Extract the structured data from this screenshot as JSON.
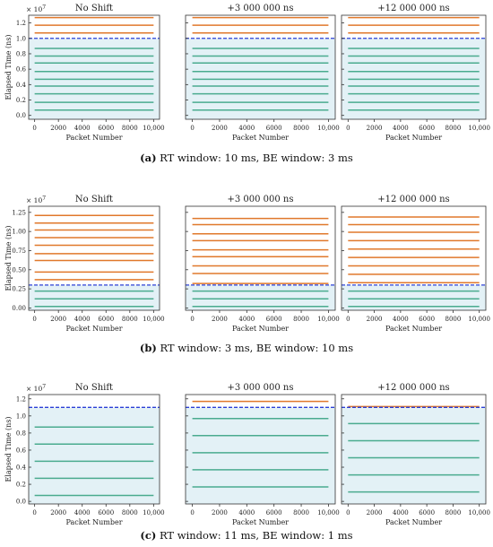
{
  "shared": {
    "ylabel": "Elapsed Time (ns)",
    "xlabel": "Packet Number",
    "exponent": "× 10",
    "exponent_power": "7",
    "x_ticks": [
      "0",
      "2000",
      "4000",
      "6000",
      "8000",
      "10,000"
    ],
    "x_tick_values": [
      0,
      2000,
      4000,
      6000,
      8000,
      10000
    ],
    "xlim": [
      -500,
      10500
    ],
    "colors": {
      "rt_line": "#4aab8f",
      "be_line": "#e0782b",
      "threshold": "#2b3fd6",
      "rt_fill": "#e3f1f6",
      "frame": "#333333"
    }
  },
  "rows": [
    {
      "caption_label": "(a)",
      "caption_text": "RT window: 10 ms, BE window: 3 ms",
      "y_ticks": [
        "0.0",
        "0.2",
        "0.4",
        "0.6",
        "0.8",
        "1.0",
        "1.2"
      ],
      "y_tick_values": [
        0.0,
        0.2,
        0.4,
        0.6,
        0.8,
        1.0,
        1.2
      ]
    },
    {
      "caption_label": "(b)",
      "caption_text": "RT window: 3 ms, BE window: 10 ms",
      "y_ticks": [
        "0.00",
        "0.25",
        "0.50",
        "0.75",
        "1.00",
        "1.25"
      ],
      "y_tick_values": [
        0.0,
        0.25,
        0.5,
        0.75,
        1.0,
        1.25
      ]
    },
    {
      "caption_label": "(c)",
      "caption_text": "RT window: 11 ms, BE window: 1 ms",
      "y_ticks": [
        "0.0",
        "0.2",
        "0.4",
        "0.6",
        "0.8",
        "1.0",
        "1.2"
      ],
      "y_tick_values": [
        0.0,
        0.2,
        0.4,
        0.6,
        0.8,
        1.0,
        1.2
      ]
    }
  ],
  "chart_data": [
    {
      "type": "line",
      "row": 0,
      "title": "No Shift",
      "xlabel": "Packet Number",
      "ylabel": "Elapsed Time (ns)",
      "ylim": [
        -0.05,
        1.3
      ],
      "threshold": 1.0,
      "rt_fill_max": 1.0,
      "series": [
        {
          "group": "rt",
          "values": [
            0.07,
            0.17,
            0.28,
            0.38,
            0.47,
            0.57,
            0.68,
            0.77,
            0.87
          ]
        },
        {
          "group": "be",
          "values": [
            1.07,
            1.17,
            1.27
          ]
        }
      ]
    },
    {
      "type": "line",
      "row": 0,
      "title": "+3 000 000 ns",
      "xlabel": "Packet Number",
      "ylim": [
        -0.05,
        1.3
      ],
      "threshold": 1.0,
      "rt_fill_max": 1.0,
      "series": [
        {
          "group": "rt",
          "values": [
            0.07,
            0.17,
            0.28,
            0.38,
            0.47,
            0.57,
            0.68,
            0.77,
            0.87
          ]
        },
        {
          "group": "be",
          "values": [
            1.07,
            1.17,
            1.27
          ]
        }
      ]
    },
    {
      "type": "line",
      "row": 0,
      "title": "+12 000 000 ns",
      "xlabel": "Packet Number",
      "ylim": [
        -0.05,
        1.3
      ],
      "threshold": 1.0,
      "rt_fill_max": 1.0,
      "series": [
        {
          "group": "rt",
          "values": [
            0.07,
            0.17,
            0.28,
            0.38,
            0.47,
            0.57,
            0.68,
            0.77,
            0.87
          ]
        },
        {
          "group": "be",
          "values": [
            1.07,
            1.17,
            1.27
          ]
        }
      ]
    },
    {
      "type": "line",
      "row": 1,
      "title": "No Shift",
      "xlabel": "Packet Number",
      "ylabel": "Elapsed Time (ns)",
      "ylim": [
        -0.03,
        1.33
      ],
      "threshold": 0.3,
      "rt_fill_max": 0.3,
      "series": [
        {
          "group": "rt",
          "values": [
            0.02,
            0.12,
            0.22
          ]
        },
        {
          "group": "be",
          "values": [
            0.37,
            0.47,
            0.62,
            0.71,
            0.82,
            0.92,
            1.02,
            1.11,
            1.21
          ]
        }
      ]
    },
    {
      "type": "line",
      "row": 1,
      "title": "+3 000 000 ns",
      "xlabel": "Packet Number",
      "ylim": [
        -0.03,
        1.33
      ],
      "threshold": 0.3,
      "rt_fill_max": 0.3,
      "series": [
        {
          "group": "rt",
          "values": [
            0.02,
            0.12,
            0.22
          ]
        },
        {
          "group": "be",
          "values": [
            0.32,
            0.45,
            0.55,
            0.67,
            0.76,
            0.88,
            0.97,
            1.09,
            1.17
          ]
        }
      ]
    },
    {
      "type": "line",
      "row": 1,
      "title": "+12 000 000 ns",
      "xlabel": "Packet Number",
      "ylim": [
        -0.03,
        1.33
      ],
      "threshold": 0.3,
      "rt_fill_max": 0.3,
      "series": [
        {
          "group": "rt",
          "values": [
            0.02,
            0.12,
            0.22
          ]
        },
        {
          "group": "be",
          "values": [
            0.33,
            0.44,
            0.55,
            0.66,
            0.77,
            0.88,
            0.99,
            1.09,
            1.19
          ]
        }
      ]
    },
    {
      "type": "line",
      "row": 2,
      "title": "No Shift",
      "xlabel": "Packet Number",
      "ylabel": "Elapsed Time (ns)",
      "ylim": [
        -0.03,
        1.25
      ],
      "threshold": 1.1,
      "rt_fill_max": 1.1,
      "series": [
        {
          "group": "rt",
          "values": [
            0.07,
            0.27,
            0.47,
            0.67,
            0.87
          ]
        },
        {
          "group": "be",
          "values": []
        }
      ]
    },
    {
      "type": "line",
      "row": 2,
      "title": "+3 000 000 ns",
      "xlabel": "Packet Number",
      "ylim": [
        -0.03,
        1.25
      ],
      "threshold": 1.1,
      "rt_fill_max": 1.1,
      "series": [
        {
          "group": "rt",
          "values": [
            0.17,
            0.37,
            0.57,
            0.77,
            0.97
          ]
        },
        {
          "group": "be",
          "values": [
            1.17
          ]
        }
      ]
    },
    {
      "type": "line",
      "row": 2,
      "title": "+12 000 000 ns",
      "xlabel": "Packet Number",
      "ylim": [
        -0.03,
        1.25
      ],
      "threshold": 1.1,
      "rt_fill_max": 1.1,
      "series": [
        {
          "group": "rt",
          "values": [
            0.11,
            0.31,
            0.51,
            0.71,
            0.91
          ]
        },
        {
          "group": "be",
          "values": [
            1.11
          ]
        }
      ]
    }
  ]
}
